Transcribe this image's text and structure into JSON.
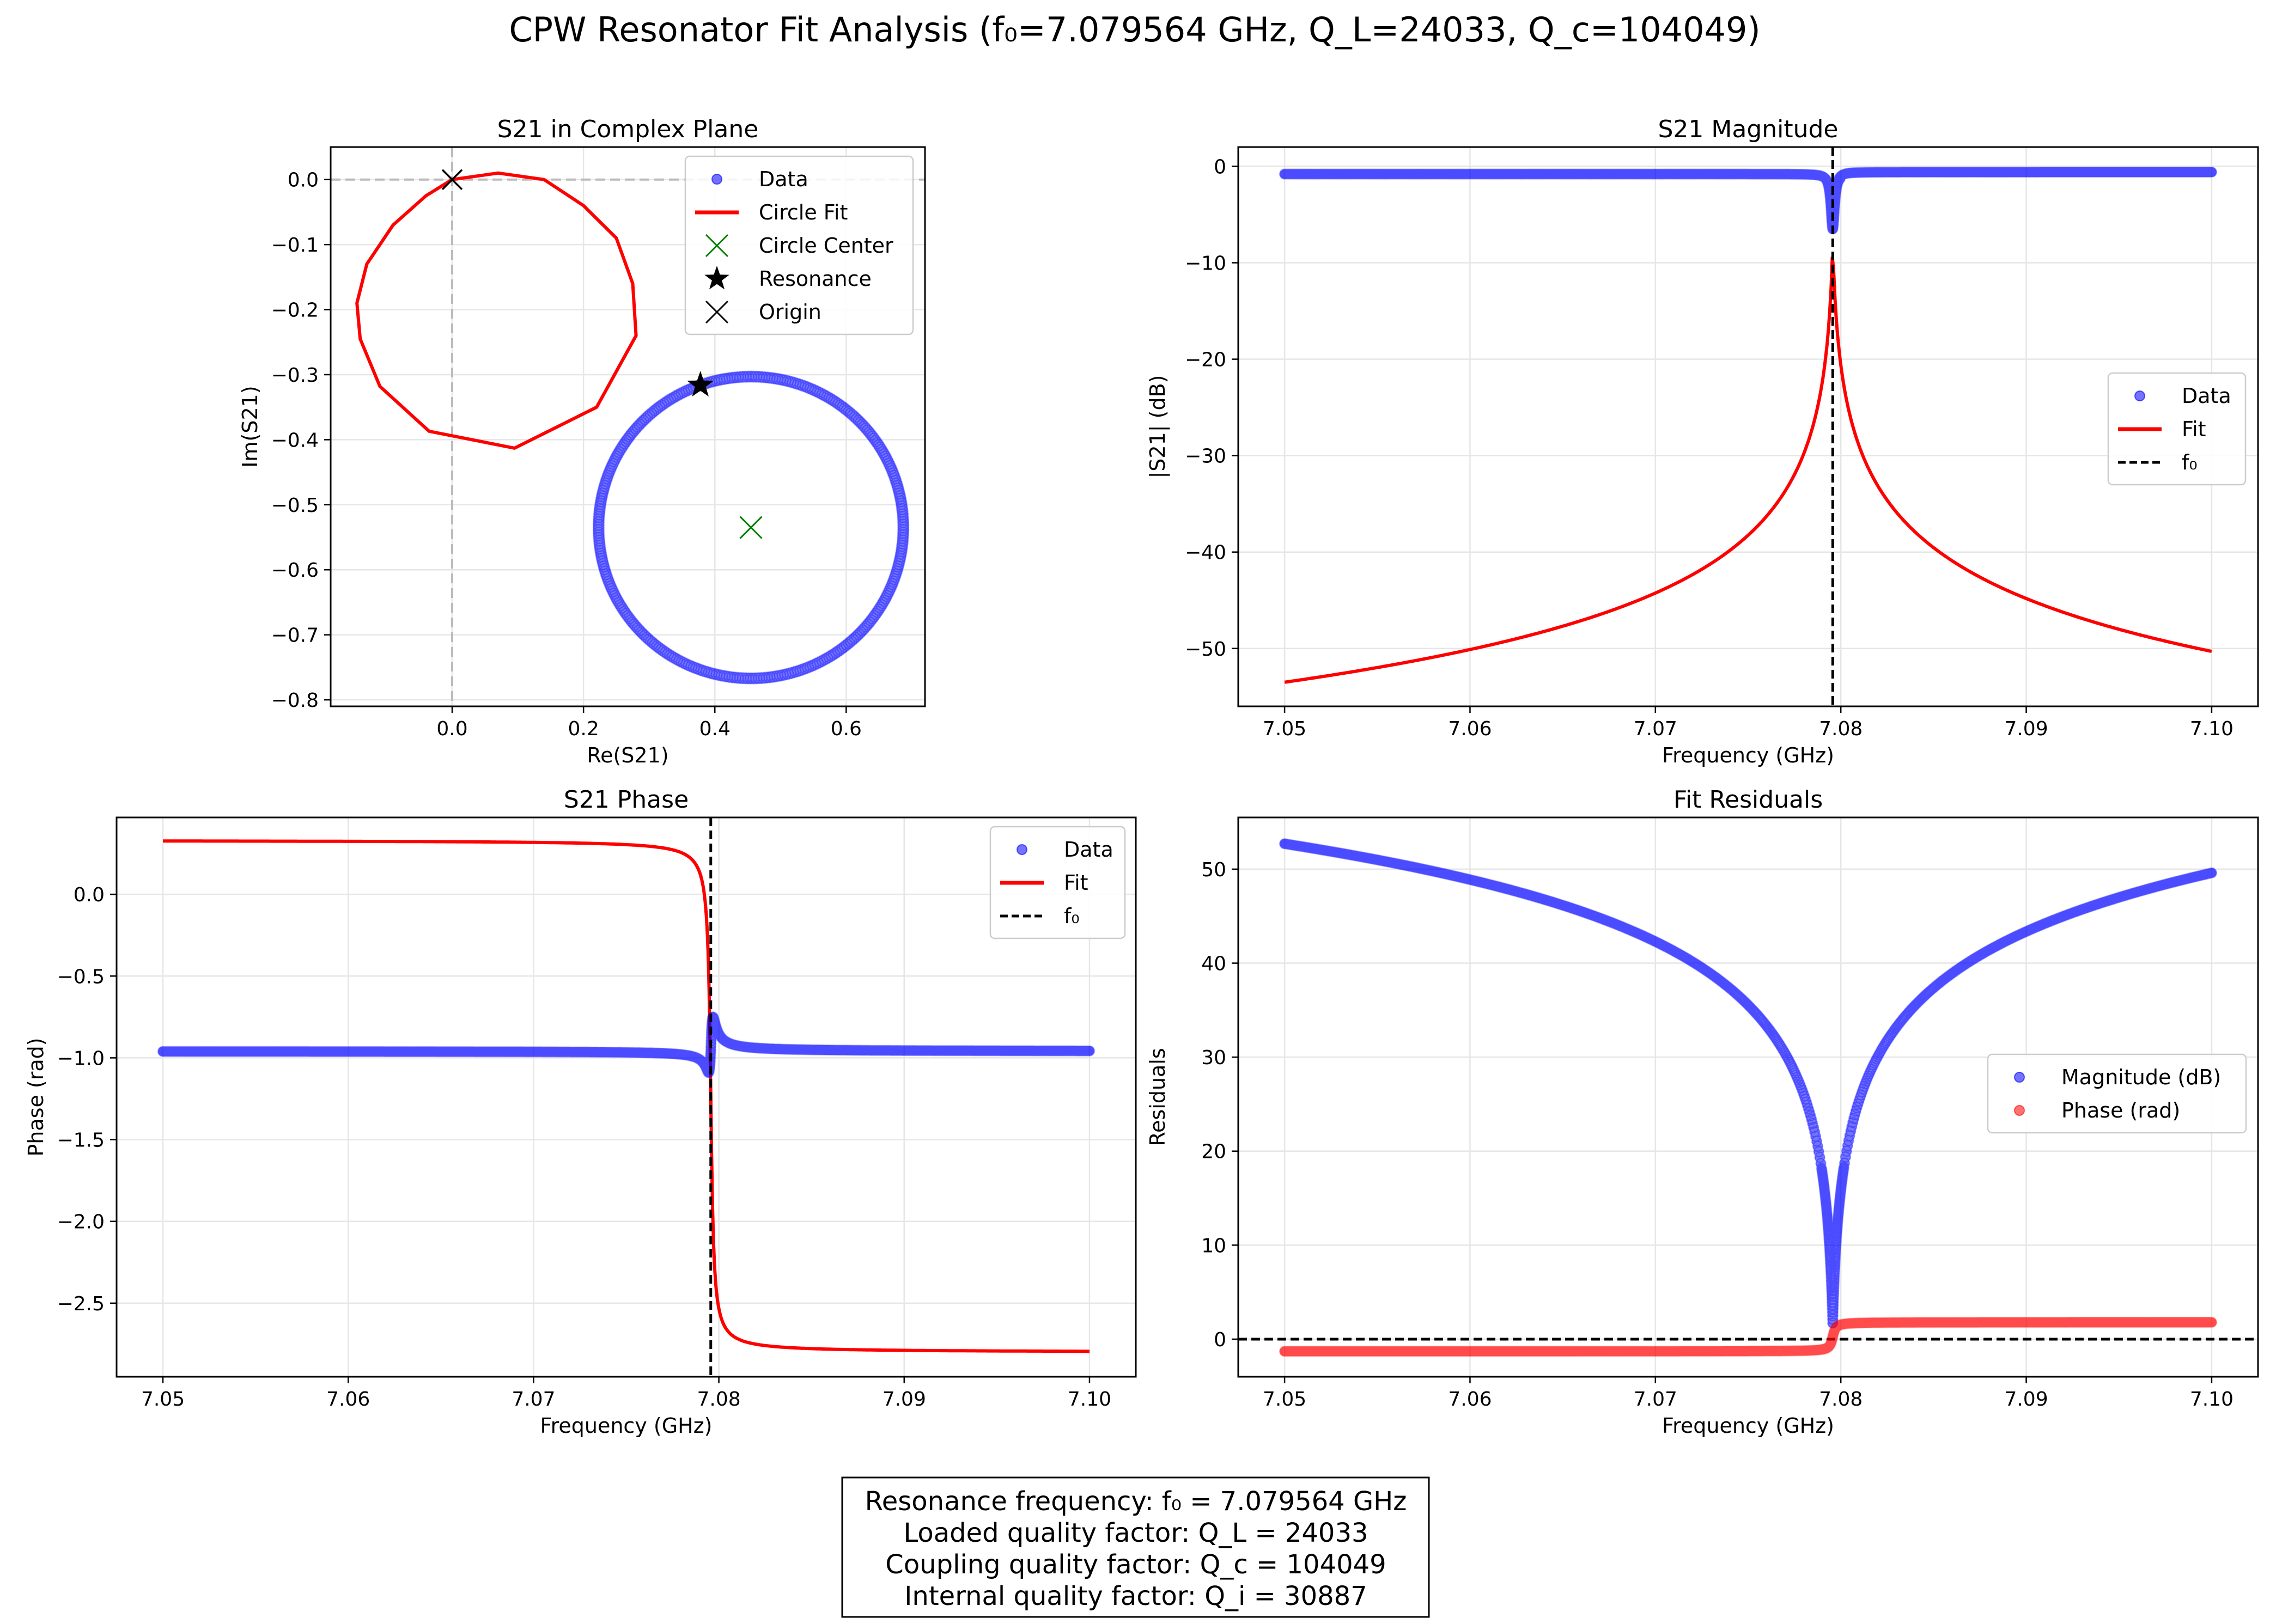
{
  "figure": {
    "title": "CPW Resonator Fit Analysis (f₀=7.079564 GHz, Q_L=24033, Q_c=104049)",
    "summary_lines": [
      "Resonance frequency: f₀ = 7.079564 GHz",
      "Loaded quality factor: Q_L = 24033",
      "Coupling quality factor: Q_c = 104049",
      "Internal quality factor: Q_i = 30887"
    ]
  },
  "colors": {
    "data_blue": "#0000ff",
    "fit_red": "#ff0000",
    "center_green": "#008000",
    "black": "#000000",
    "grid": "#e6e6e6"
  },
  "chart_data": [
    {
      "id": "complex",
      "type": "scatter",
      "title": "S21 in Complex Plane",
      "xlabel": "Re(S21)",
      "ylabel": "Im(S21)",
      "xlim": [
        -0.185,
        0.72
      ],
      "ylim": [
        -0.81,
        0.05
      ],
      "xticks": [
        0.0,
        0.2,
        0.4,
        0.6
      ],
      "xtick_labels": [
        "0.0",
        "0.2",
        "0.4",
        "0.6"
      ],
      "yticks": [
        0.0,
        -0.1,
        -0.2,
        -0.3,
        -0.4,
        -0.5,
        -0.6,
        -0.7,
        -0.8
      ],
      "ytick_labels": [
        "0.0",
        "−0.1",
        "−0.2",
        "−0.3",
        "−0.4",
        "−0.5",
        "−0.6",
        "−0.7",
        "−0.8"
      ],
      "grid": true,
      "legend_position": "top-right",
      "legend": [
        "Data",
        "Circle Fit",
        "Circle Center",
        "Resonance",
        "Origin"
      ],
      "data_circle": {
        "center": [
          0.455,
          -0.535
        ],
        "radius": 0.232
      },
      "circle_fit": [
        [
          0.0,
          0.0
        ],
        [
          0.07,
          0.01
        ],
        [
          0.14,
          0.0
        ],
        [
          0.2,
          -0.04
        ],
        [
          0.25,
          -0.09
        ],
        [
          0.275,
          -0.16
        ],
        [
          0.28,
          -0.24
        ],
        [
          0.22,
          -0.35
        ],
        [
          0.095,
          -0.413
        ],
        [
          -0.035,
          -0.387
        ],
        [
          -0.11,
          -0.318
        ],
        [
          -0.14,
          -0.245
        ],
        [
          -0.145,
          -0.19
        ],
        [
          -0.13,
          -0.13
        ],
        [
          -0.09,
          -0.07
        ],
        [
          -0.04,
          -0.025
        ],
        [
          0.0,
          0.0
        ]
      ],
      "circle_center": [
        0.455,
        -0.535
      ],
      "resonance": [
        0.378,
        -0.316
      ],
      "origin": [
        0.0,
        0.0
      ],
      "guide_lines": {
        "x": 0.0,
        "y": 0.0
      }
    },
    {
      "id": "magnitude",
      "type": "line",
      "title": "S21 Magnitude",
      "xlabel": "Frequency (GHz)",
      "ylabel": "|S21| (dB)",
      "xlim": [
        7.0475,
        7.1025
      ],
      "ylim": [
        -56,
        2
      ],
      "xticks": [
        7.05,
        7.06,
        7.07,
        7.08,
        7.09,
        7.1
      ],
      "xtick_labels": [
        "7.05",
        "7.06",
        "7.07",
        "7.08",
        "7.09",
        "7.10"
      ],
      "yticks": [
        0,
        -10,
        -20,
        -30,
        -40,
        -50
      ],
      "ytick_labels": [
        "0",
        "−10",
        "−20",
        "−30",
        "−40",
        "−50"
      ],
      "grid": true,
      "legend_position": "center-right",
      "legend": [
        "Data",
        "Fit",
        "f₀"
      ],
      "f0": 7.079564,
      "data_level_db": -0.8,
      "data_level_after_db": -0.6,
      "data_dip_db": -6.5,
      "fit_peak_db": -8.0,
      "fit_edge_left_db": -53.5,
      "fit_edge_right_db": -50.3
    },
    {
      "id": "phase",
      "type": "line",
      "title": "S21 Phase",
      "xlabel": "Frequency (GHz)",
      "ylabel": "Phase (rad)",
      "xlim": [
        7.0475,
        7.1025
      ],
      "ylim": [
        -2.95,
        0.47
      ],
      "xticks": [
        7.05,
        7.06,
        7.07,
        7.08,
        7.09,
        7.1
      ],
      "xtick_labels": [
        "7.05",
        "7.06",
        "7.07",
        "7.08",
        "7.09",
        "7.10"
      ],
      "yticks": [
        0.0,
        -0.5,
        -1.0,
        -1.5,
        -2.0,
        -2.5
      ],
      "ytick_labels": [
        "0.0",
        "−0.5",
        "−1.0",
        "−1.5",
        "−2.0",
        "−2.5"
      ],
      "grid": true,
      "legend_position": "top-right",
      "legend": [
        "Data",
        "Fit",
        "f₀"
      ],
      "f0": 7.079564,
      "data_level_rad": -0.96,
      "data_min_rad": -1.22,
      "data_max_rad": -0.53,
      "fit_start_rad": 0.33,
      "fit_end_rad": -2.8
    },
    {
      "id": "residuals",
      "type": "scatter",
      "title": "Fit Residuals",
      "xlabel": "Frequency (GHz)",
      "ylabel": "Residuals",
      "xlim": [
        7.0475,
        7.1025
      ],
      "ylim": [
        -4,
        55.5
      ],
      "xticks": [
        7.05,
        7.06,
        7.07,
        7.08,
        7.09,
        7.1
      ],
      "xtick_labels": [
        "7.05",
        "7.06",
        "7.07",
        "7.08",
        "7.09",
        "7.10"
      ],
      "yticks": [
        0,
        10,
        20,
        30,
        40,
        50
      ],
      "ytick_labels": [
        "0",
        "10",
        "20",
        "30",
        "40",
        "50"
      ],
      "grid": true,
      "legend_position": "center-right",
      "legend": [
        "Magnitude (dB)",
        "Phase (rad)"
      ],
      "f0": 7.079564,
      "magnitude_start": 52.7,
      "magnitude_end": 49.6,
      "magnitude_min": 1.5,
      "phase_before_rad": -1.3,
      "phase_after_rad": 1.8,
      "zero_line": 0
    }
  ]
}
